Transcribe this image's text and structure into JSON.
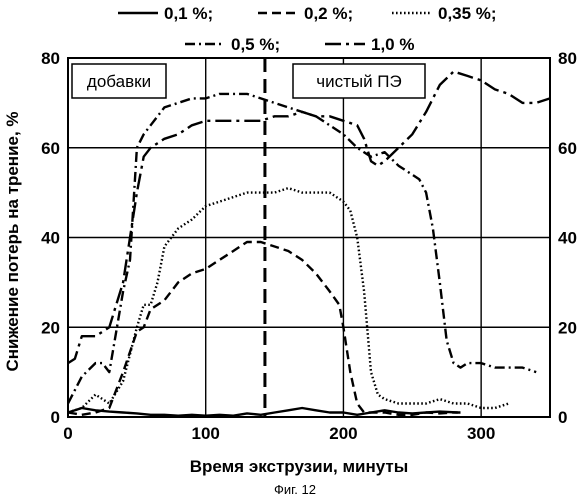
{
  "chart_data": {
    "type": "line",
    "xlabel": "Время экструзии, минуты",
    "ylabel": "Снижение потерь на трение, %",
    "caption": "Фиг. 12",
    "xlim": [
      0,
      350
    ],
    "ylim": [
      0,
      80
    ],
    "x_ticks": [
      "0",
      "100",
      "200",
      "300"
    ],
    "y_ticks": [
      "0",
      "20",
      "40",
      "60",
      "80"
    ],
    "grid": true,
    "legend_position": "top",
    "annotations": {
      "additives": "добавки",
      "pure": "чистый ПЭ"
    },
    "marker_x": 143,
    "series": [
      {
        "name": "0,1 %;",
        "style": "solid",
        "points": [
          [
            0,
            1
          ],
          [
            10,
            2
          ],
          [
            20,
            1.5
          ],
          [
            30,
            1.2
          ],
          [
            40,
            1
          ],
          [
            50,
            0.8
          ],
          [
            60,
            0.5
          ],
          [
            70,
            0.5
          ],
          [
            80,
            0.3
          ],
          [
            90,
            0.5
          ],
          [
            100,
            0.3
          ],
          [
            110,
            0.5
          ],
          [
            120,
            0.3
          ],
          [
            130,
            0.8
          ],
          [
            140,
            0.5
          ],
          [
            150,
            1
          ],
          [
            160,
            1.5
          ],
          [
            170,
            2
          ],
          [
            180,
            1.5
          ],
          [
            190,
            1
          ],
          [
            200,
            1
          ],
          [
            210,
            0.5
          ],
          [
            220,
            1
          ],
          [
            230,
            1.5
          ],
          [
            240,
            1
          ],
          [
            250,
            0.8
          ],
          [
            260,
            1
          ],
          [
            270,
            1.2
          ],
          [
            283,
            1
          ]
        ]
      },
      {
        "name": "0,2 %;",
        "style": "dash",
        "points": [
          [
            0,
            1
          ],
          [
            10,
            0.5
          ],
          [
            20,
            1
          ],
          [
            30,
            2
          ],
          [
            40,
            10
          ],
          [
            50,
            19
          ],
          [
            55,
            20
          ],
          [
            60,
            24
          ],
          [
            70,
            26
          ],
          [
            80,
            30
          ],
          [
            90,
            32
          ],
          [
            100,
            33
          ],
          [
            110,
            35
          ],
          [
            120,
            37
          ],
          [
            130,
            39
          ],
          [
            140,
            39
          ],
          [
            150,
            38
          ],
          [
            160,
            37
          ],
          [
            170,
            35
          ],
          [
            180,
            32
          ],
          [
            190,
            28
          ],
          [
            197,
            25
          ],
          [
            200,
            20
          ],
          [
            205,
            10
          ],
          [
            210,
            3
          ],
          [
            215,
            1
          ],
          [
            220,
            1
          ],
          [
            230,
            1
          ],
          [
            240,
            0.5
          ],
          [
            250,
            0.5
          ],
          [
            260,
            1
          ],
          [
            270,
            0.8
          ],
          [
            280,
            1
          ],
          [
            285,
            1
          ]
        ]
      },
      {
        "name": "0,35 %;",
        "style": "dot",
        "points": [
          [
            0,
            1
          ],
          [
            10,
            2
          ],
          [
            20,
            5
          ],
          [
            30,
            3
          ],
          [
            40,
            8
          ],
          [
            50,
            20
          ],
          [
            55,
            25
          ],
          [
            60,
            25
          ],
          [
            65,
            30
          ],
          [
            70,
            38
          ],
          [
            80,
            42
          ],
          [
            90,
            44
          ],
          [
            100,
            47
          ],
          [
            110,
            48
          ],
          [
            120,
            49
          ],
          [
            130,
            50
          ],
          [
            140,
            50
          ],
          [
            150,
            50
          ],
          [
            160,
            51
          ],
          [
            170,
            50
          ],
          [
            180,
            50
          ],
          [
            190,
            50
          ],
          [
            200,
            48
          ],
          [
            205,
            46
          ],
          [
            210,
            40
          ],
          [
            215,
            28
          ],
          [
            220,
            10
          ],
          [
            225,
            5
          ],
          [
            230,
            4
          ],
          [
            240,
            3
          ],
          [
            250,
            3
          ],
          [
            260,
            3
          ],
          [
            270,
            4
          ],
          [
            280,
            3
          ],
          [
            290,
            3
          ],
          [
            300,
            2
          ],
          [
            310,
            2
          ],
          [
            320,
            3
          ]
        ]
      },
      {
        "name": "0,5 %;",
        "style": "dashdot",
        "points": [
          [
            0,
            3
          ],
          [
            10,
            9
          ],
          [
            20,
            12
          ],
          [
            25,
            12
          ],
          [
            30,
            10
          ],
          [
            40,
            28
          ],
          [
            45,
            35
          ],
          [
            50,
            60
          ],
          [
            55,
            63
          ],
          [
            60,
            65
          ],
          [
            70,
            69
          ],
          [
            80,
            70
          ],
          [
            90,
            71
          ],
          [
            100,
            71
          ],
          [
            110,
            72
          ],
          [
            120,
            72
          ],
          [
            130,
            72
          ],
          [
            140,
            71
          ],
          [
            150,
            70
          ],
          [
            160,
            69
          ],
          [
            170,
            68
          ],
          [
            180,
            67
          ],
          [
            190,
            65
          ],
          [
            200,
            63
          ],
          [
            210,
            60
          ],
          [
            220,
            58
          ],
          [
            230,
            59
          ],
          [
            240,
            56
          ],
          [
            250,
            54
          ],
          [
            255,
            53
          ],
          [
            260,
            50
          ],
          [
            265,
            42
          ],
          [
            270,
            30
          ],
          [
            275,
            17
          ],
          [
            280,
            12
          ],
          [
            285,
            11
          ],
          [
            290,
            12
          ],
          [
            300,
            12
          ],
          [
            310,
            11
          ],
          [
            320,
            11
          ],
          [
            330,
            11
          ],
          [
            340,
            10
          ]
        ]
      },
      {
        "name": "1,0 %",
        "style": "longdashdot",
        "points": [
          [
            0,
            12
          ],
          [
            5,
            13
          ],
          [
            10,
            18
          ],
          [
            20,
            18
          ],
          [
            30,
            20
          ],
          [
            40,
            30
          ],
          [
            45,
            40
          ],
          [
            50,
            50
          ],
          [
            55,
            58
          ],
          [
            60,
            60
          ],
          [
            70,
            62
          ],
          [
            80,
            63
          ],
          [
            90,
            65
          ],
          [
            100,
            66
          ],
          [
            110,
            66
          ],
          [
            120,
            66
          ],
          [
            130,
            66
          ],
          [
            140,
            66
          ],
          [
            150,
            67
          ],
          [
            160,
            67
          ],
          [
            170,
            68
          ],
          [
            180,
            67
          ],
          [
            190,
            67
          ],
          [
            200,
            66
          ],
          [
            210,
            65
          ],
          [
            215,
            62
          ],
          [
            220,
            57
          ],
          [
            225,
            56
          ],
          [
            230,
            57
          ],
          [
            240,
            60
          ],
          [
            250,
            63
          ],
          [
            260,
            68
          ],
          [
            270,
            74
          ],
          [
            280,
            77
          ],
          [
            290,
            76
          ],
          [
            300,
            75
          ],
          [
            310,
            73
          ],
          [
            320,
            72
          ],
          [
            330,
            70
          ],
          [
            340,
            70
          ],
          [
            350,
            71
          ]
        ]
      }
    ]
  }
}
